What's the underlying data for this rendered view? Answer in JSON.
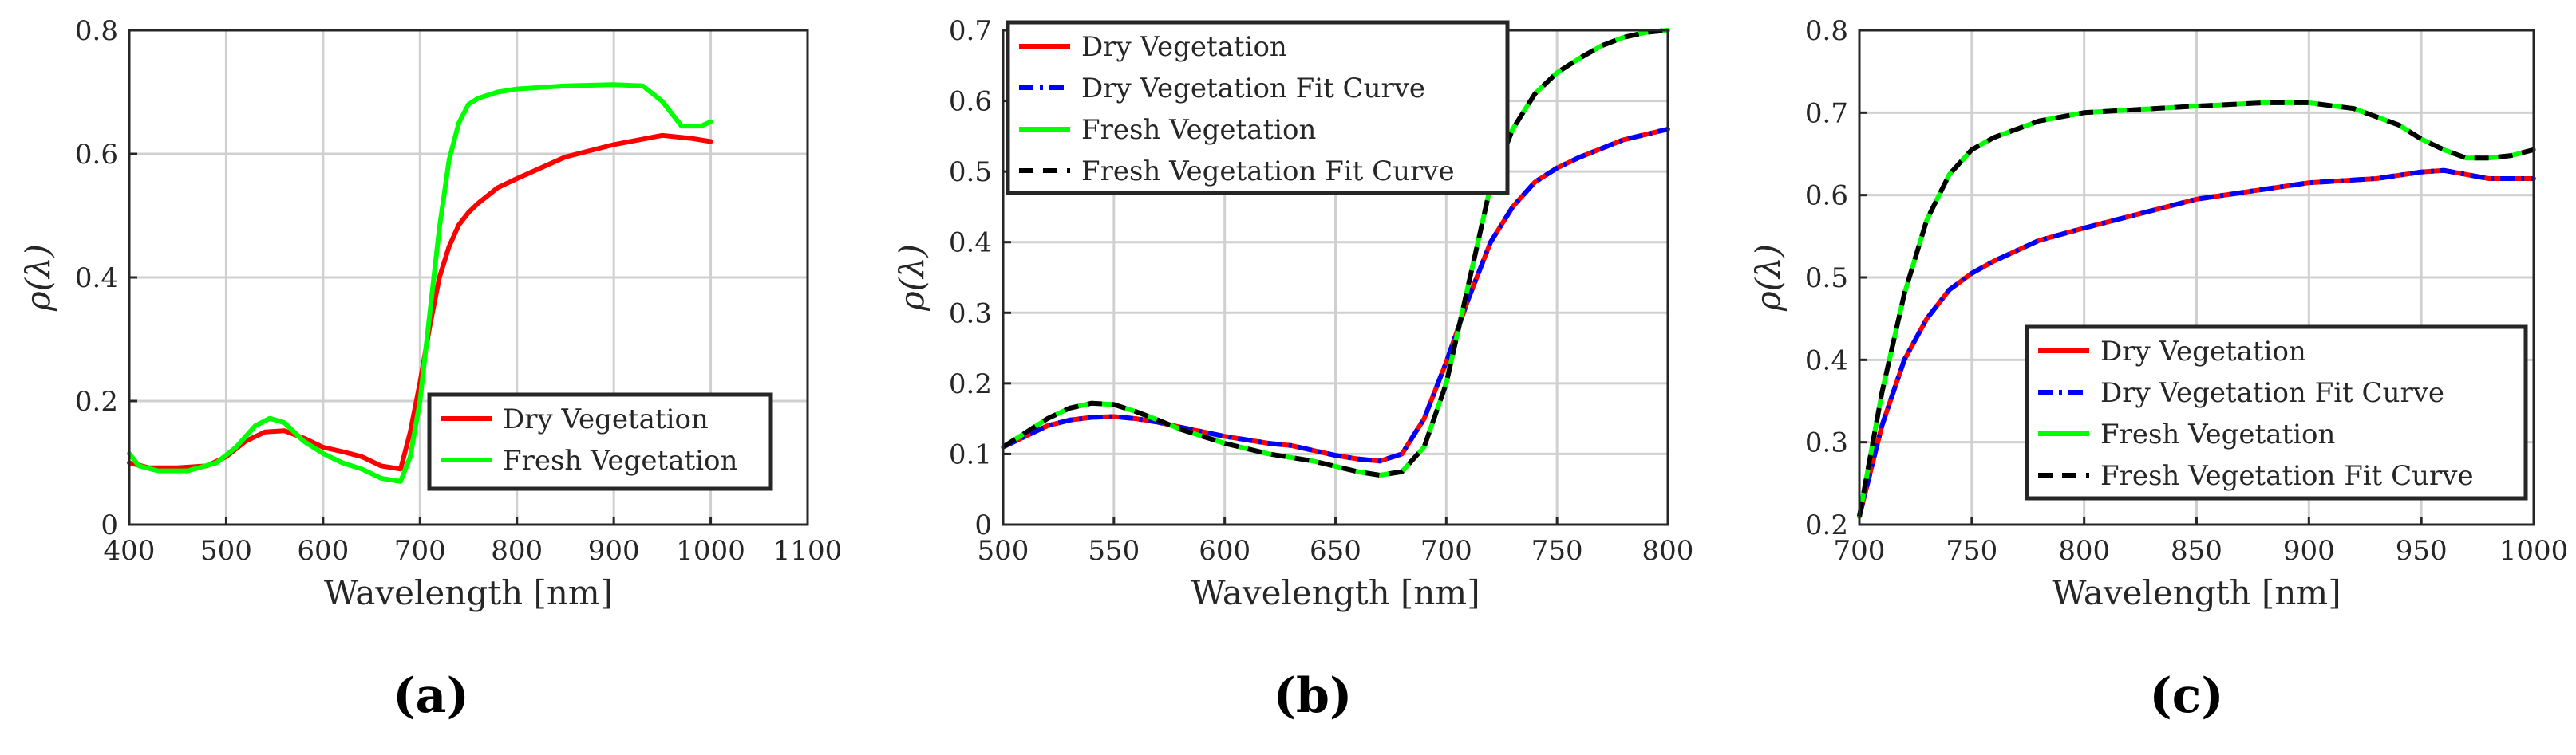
{
  "colors": {
    "dry": "#ff0000",
    "fresh": "#00ff00",
    "dry_fit": "#0000ff",
    "fresh_fit": "#000000",
    "grid": "#d0d0d0",
    "axis": "#262626"
  },
  "chart_data": [
    {
      "type": "line",
      "panel_label": "(a)",
      "xlabel": "Wavelength [nm]",
      "ylabel": "ρ(λ)",
      "xlim": [
        400,
        1100
      ],
      "ylim": [
        0,
        0.8
      ],
      "xticks": [
        400,
        500,
        600,
        700,
        800,
        900,
        1000,
        1100
      ],
      "yticks": [
        0,
        0.2,
        0.4,
        0.6,
        0.8
      ],
      "grid": true,
      "legend_position": "lower-right",
      "series": [
        {
          "name": "Dry Vegetation",
          "style": "solid",
          "color_key": "dry",
          "x": [
            400,
            420,
            450,
            480,
            500,
            520,
            540,
            560,
            580,
            600,
            620,
            640,
            660,
            680,
            690,
            700,
            710,
            720,
            730,
            740,
            750,
            760,
            780,
            800,
            850,
            900,
            950,
            980,
            1000
          ],
          "y": [
            0.1,
            0.092,
            0.092,
            0.095,
            0.11,
            0.135,
            0.15,
            0.152,
            0.14,
            0.125,
            0.118,
            0.11,
            0.095,
            0.09,
            0.15,
            0.23,
            0.32,
            0.4,
            0.45,
            0.485,
            0.505,
            0.52,
            0.545,
            0.56,
            0.595,
            0.615,
            0.63,
            0.625,
            0.62
          ]
        },
        {
          "name": "Fresh Vegetation",
          "style": "solid",
          "color_key": "fresh",
          "x": [
            400,
            410,
            430,
            460,
            490,
            510,
            530,
            545,
            560,
            580,
            600,
            620,
            640,
            660,
            680,
            690,
            700,
            710,
            720,
            730,
            740,
            750,
            760,
            780,
            800,
            850,
            900,
            930,
            950,
            970,
            990,
            1000
          ],
          "y": [
            0.115,
            0.095,
            0.087,
            0.087,
            0.1,
            0.125,
            0.16,
            0.172,
            0.165,
            0.135,
            0.115,
            0.1,
            0.09,
            0.075,
            0.07,
            0.11,
            0.2,
            0.34,
            0.48,
            0.59,
            0.65,
            0.68,
            0.69,
            0.7,
            0.705,
            0.71,
            0.712,
            0.71,
            0.685,
            0.645,
            0.645,
            0.652
          ]
        }
      ]
    },
    {
      "type": "line",
      "panel_label": "(b)",
      "xlabel": "Wavelength [nm]",
      "ylabel": "ρ(λ)",
      "xlim": [
        500,
        800
      ],
      "ylim": [
        0,
        0.7
      ],
      "xticks": [
        500,
        550,
        600,
        650,
        700,
        750,
        800
      ],
      "yticks": [
        0,
        0.1,
        0.2,
        0.3,
        0.4,
        0.5,
        0.6,
        0.7
      ],
      "grid": true,
      "legend_position": "top-left",
      "series": [
        {
          "name": "Dry Vegetation",
          "style": "solid",
          "color_key": "dry",
          "x": [
            500,
            510,
            520,
            530,
            540,
            550,
            560,
            570,
            580,
            600,
            620,
            630,
            640,
            650,
            660,
            670,
            680,
            690,
            700,
            710,
            720,
            730,
            740,
            750,
            760,
            780,
            800
          ],
          "y": [
            0.11,
            0.125,
            0.14,
            0.148,
            0.152,
            0.153,
            0.15,
            0.145,
            0.138,
            0.125,
            0.115,
            0.112,
            0.105,
            0.098,
            0.093,
            0.09,
            0.1,
            0.15,
            0.23,
            0.32,
            0.4,
            0.45,
            0.485,
            0.505,
            0.52,
            0.545,
            0.56
          ]
        },
        {
          "name": "Dry Vegetation Fit Curve",
          "style": "dashdot",
          "color_key": "dry_fit",
          "x": [
            500,
            510,
            520,
            530,
            540,
            550,
            560,
            570,
            580,
            600,
            620,
            630,
            640,
            650,
            660,
            670,
            680,
            690,
            700,
            710,
            720,
            730,
            740,
            750,
            760,
            780,
            800
          ],
          "y": [
            0.11,
            0.125,
            0.14,
            0.148,
            0.152,
            0.153,
            0.15,
            0.145,
            0.138,
            0.125,
            0.115,
            0.112,
            0.105,
            0.098,
            0.093,
            0.09,
            0.1,
            0.15,
            0.23,
            0.32,
            0.4,
            0.45,
            0.485,
            0.505,
            0.52,
            0.545,
            0.56
          ]
        },
        {
          "name": "Fresh Vegetation",
          "style": "solid",
          "color_key": "fresh",
          "x": [
            500,
            510,
            520,
            530,
            540,
            550,
            560,
            570,
            580,
            600,
            620,
            640,
            660,
            670,
            680,
            690,
            700,
            710,
            720,
            730,
            740,
            750,
            760,
            770,
            780,
            790,
            800
          ],
          "y": [
            0.11,
            0.13,
            0.15,
            0.165,
            0.172,
            0.17,
            0.16,
            0.148,
            0.135,
            0.115,
            0.1,
            0.09,
            0.075,
            0.07,
            0.075,
            0.11,
            0.2,
            0.34,
            0.48,
            0.56,
            0.61,
            0.64,
            0.66,
            0.678,
            0.69,
            0.697,
            0.7
          ]
        },
        {
          "name": "Fresh Vegetation Fit Curve",
          "style": "dashed",
          "color_key": "fresh_fit",
          "x": [
            500,
            510,
            520,
            530,
            540,
            550,
            560,
            570,
            580,
            600,
            620,
            640,
            660,
            670,
            680,
            690,
            700,
            710,
            720,
            730,
            740,
            750,
            760,
            770,
            780,
            790,
            800
          ],
          "y": [
            0.11,
            0.13,
            0.15,
            0.165,
            0.172,
            0.17,
            0.16,
            0.148,
            0.135,
            0.115,
            0.1,
            0.09,
            0.075,
            0.07,
            0.075,
            0.11,
            0.2,
            0.34,
            0.48,
            0.56,
            0.61,
            0.64,
            0.66,
            0.678,
            0.69,
            0.697,
            0.7
          ]
        }
      ]
    },
    {
      "type": "line",
      "panel_label": "(c)",
      "xlabel": "Wavelength [nm]",
      "ylabel": "ρ(λ)",
      "xlim": [
        700,
        1000
      ],
      "ylim": [
        0.2,
        0.8
      ],
      "xticks": [
        700,
        750,
        800,
        850,
        900,
        950,
        1000
      ],
      "yticks": [
        0.2,
        0.3,
        0.4,
        0.5,
        0.6,
        0.7,
        0.8
      ],
      "grid": true,
      "legend_position": "lower-right",
      "series": [
        {
          "name": "Dry Vegetation",
          "style": "solid",
          "color_key": "dry",
          "x": [
            700,
            710,
            720,
            730,
            740,
            750,
            760,
            780,
            800,
            850,
            900,
            930,
            950,
            960,
            980,
            1000
          ],
          "y": [
            0.21,
            0.32,
            0.4,
            0.45,
            0.485,
            0.505,
            0.52,
            0.545,
            0.56,
            0.595,
            0.615,
            0.62,
            0.628,
            0.63,
            0.62,
            0.62
          ]
        },
        {
          "name": "Dry Vegetation Fit Curve",
          "style": "dashdot",
          "color_key": "dry_fit",
          "x": [
            700,
            710,
            720,
            730,
            740,
            750,
            760,
            780,
            800,
            850,
            900,
            930,
            950,
            960,
            980,
            1000
          ],
          "y": [
            0.21,
            0.32,
            0.4,
            0.45,
            0.485,
            0.505,
            0.52,
            0.545,
            0.56,
            0.595,
            0.615,
            0.62,
            0.628,
            0.63,
            0.62,
            0.62
          ]
        },
        {
          "name": "Fresh Vegetation",
          "style": "solid",
          "color_key": "fresh",
          "x": [
            700,
            710,
            720,
            730,
            740,
            750,
            760,
            780,
            800,
            850,
            880,
            900,
            920,
            940,
            950,
            960,
            970,
            980,
            990,
            1000
          ],
          "y": [
            0.21,
            0.36,
            0.48,
            0.57,
            0.625,
            0.655,
            0.67,
            0.69,
            0.7,
            0.708,
            0.712,
            0.712,
            0.705,
            0.685,
            0.668,
            0.655,
            0.645,
            0.645,
            0.648,
            0.655
          ]
        },
        {
          "name": "Fresh Vegetation Fit Curve",
          "style": "dashed",
          "color_key": "fresh_fit",
          "x": [
            700,
            710,
            720,
            730,
            740,
            750,
            760,
            780,
            800,
            850,
            880,
            900,
            920,
            940,
            950,
            960,
            970,
            980,
            990,
            1000
          ],
          "y": [
            0.21,
            0.36,
            0.48,
            0.57,
            0.625,
            0.655,
            0.67,
            0.69,
            0.7,
            0.708,
            0.712,
            0.712,
            0.705,
            0.685,
            0.668,
            0.655,
            0.645,
            0.645,
            0.648,
            0.655
          ]
        }
      ]
    }
  ]
}
